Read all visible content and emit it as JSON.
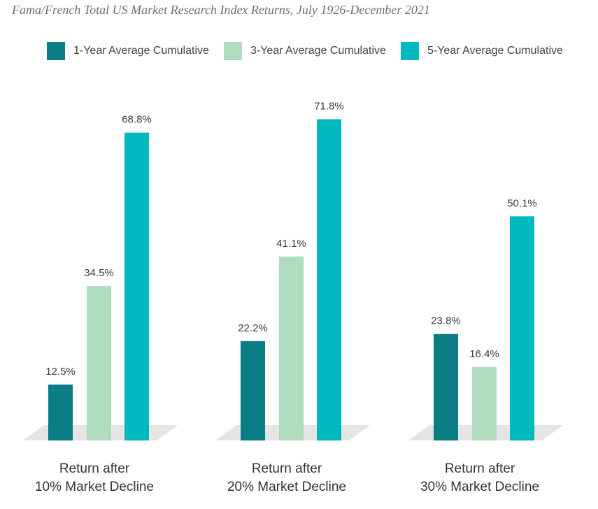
{
  "title": "Fama/French Total US Market Research Index Returns, July 1926-December 2021",
  "chart_data": {
    "type": "bar",
    "title": "Fama/French Total US Market Research Index Returns, July 1926-December 2021",
    "xlabel": "",
    "ylabel": "",
    "ylim": [
      0,
      80
    ],
    "grid": false,
    "legend_position": "top",
    "categories": [
      [
        "Return after",
        "10% Market Decline"
      ],
      [
        "Return after",
        "20% Market Decline"
      ],
      [
        "Return after",
        "30% Market Decline"
      ]
    ],
    "series": [
      {
        "name": "1-Year Average Cumulative",
        "color": "#0b7d84",
        "values": [
          12.5,
          22.2,
          23.8
        ],
        "labels": [
          "12.5%",
          "22.2%",
          "23.8%"
        ]
      },
      {
        "name": "3-Year Average Cumulative",
        "color": "#afdcbf",
        "values": [
          34.5,
          41.1,
          16.4
        ],
        "labels": [
          "34.5%",
          "41.1%",
          "16.4%"
        ]
      },
      {
        "name": "5-Year Average Cumulative",
        "color": "#00b9be",
        "values": [
          68.8,
          71.8,
          50.1
        ],
        "labels": [
          "68.8%",
          "71.8%",
          "50.1%"
        ]
      }
    ]
  },
  "colors": {
    "floor": "#e5e5e5",
    "text": "#3c3c3c"
  }
}
